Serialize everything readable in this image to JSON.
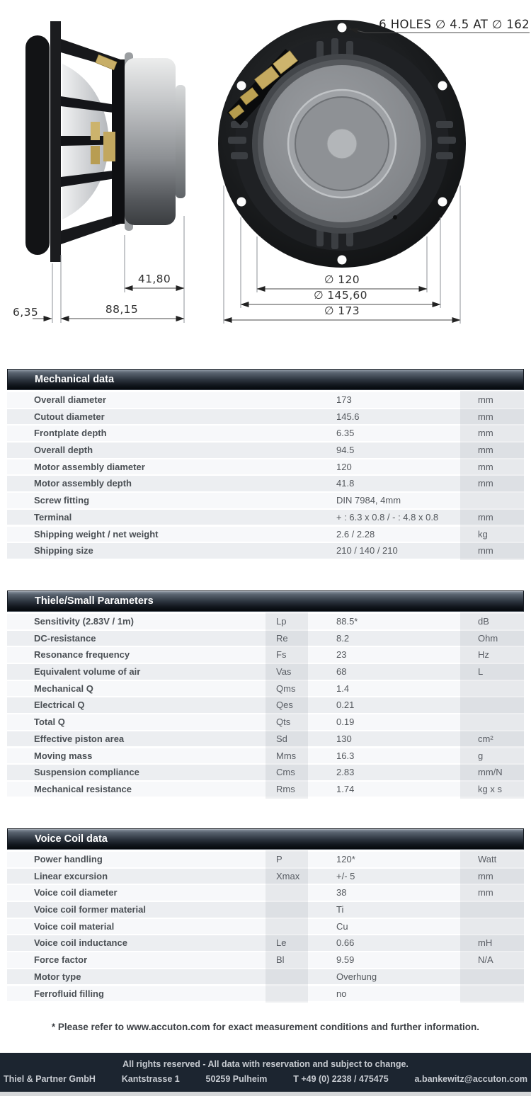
{
  "drawing": {
    "hole_note": "6 HOLES ∅ 4.5 AT ∅ 162",
    "dim_motor_depth": "41,80",
    "dim_depth_without_frontplate": "88,15",
    "dim_frontplate_depth": "6,35",
    "dim_motor_diameter": "∅ 120",
    "dim_cutout_diameter": "∅ 145,60",
    "dim_overall_diameter": "∅ 173"
  },
  "tables": [
    {
      "title": "Mechanical data",
      "rows": [
        {
          "label": "Overall diameter",
          "symbol": "",
          "value": "173",
          "unit": "mm"
        },
        {
          "label": "Cutout diameter",
          "symbol": "",
          "value": "145.6",
          "unit": "mm"
        },
        {
          "label": "Frontplate depth",
          "symbol": "",
          "value": "6.35",
          "unit": "mm"
        },
        {
          "label": "Overall depth",
          "symbol": "",
          "value": "94.5",
          "unit": "mm"
        },
        {
          "label": "Motor assembly diameter",
          "symbol": "",
          "value": "120",
          "unit": "mm"
        },
        {
          "label": "Motor assembly depth",
          "symbol": "",
          "value": "41.8",
          "unit": "mm"
        },
        {
          "label": "Screw fitting",
          "symbol": "",
          "value": "DIN 7984, 4mm",
          "unit": ""
        },
        {
          "label": "Terminal",
          "symbol": "",
          "value": "+ : 6.3 x 0.8 / - : 4.8 x 0.8",
          "unit": "mm"
        },
        {
          "label": "Shipping weight / net weight",
          "symbol": "",
          "value": "2.6 / 2.28",
          "unit": "kg"
        },
        {
          "label": "Shipping size",
          "symbol": "",
          "value": "210 / 140 / 210",
          "unit": "mm"
        }
      ]
    },
    {
      "title": "Thiele/Small Parameters",
      "rows": [
        {
          "label": "Sensitivity (2.83V / 1m)",
          "symbol": "Lp",
          "value": "88.5*",
          "unit": "dB"
        },
        {
          "label": "DC-resistance",
          "symbol": "Re",
          "value": "8.2",
          "unit": "Ohm"
        },
        {
          "label": "Resonance frequency",
          "symbol": "Fs",
          "value": "23",
          "unit": "Hz"
        },
        {
          "label": "Equivalent volume of air",
          "symbol": "Vas",
          "value": "68",
          "unit": "L"
        },
        {
          "label": "Mechanical Q",
          "symbol": "Qms",
          "value": "1.4",
          "unit": ""
        },
        {
          "label": "Electrical Q",
          "symbol": "Qes",
          "value": "0.21",
          "unit": ""
        },
        {
          "label": "Total Q",
          "symbol": "Qts",
          "value": "0.19",
          "unit": ""
        },
        {
          "label": "Effective piston area",
          "symbol": "Sd",
          "value": "130",
          "unit": "cm²"
        },
        {
          "label": "Moving mass",
          "symbol": "Mms",
          "value": "16.3",
          "unit": "g"
        },
        {
          "label": "Suspension compliance",
          "symbol": "Cms",
          "value": "2.83",
          "unit": "mm/N"
        },
        {
          "label": "Mechanical resistance",
          "symbol": "Rms",
          "value": "1.74",
          "unit": "kg x s"
        }
      ]
    },
    {
      "title": "Voice Coil data",
      "rows": [
        {
          "label": "Power handling",
          "symbol": "P",
          "value": "120*",
          "unit": "Watt"
        },
        {
          "label": "Linear excursion",
          "symbol": "Xmax",
          "value": "+/- 5",
          "unit": "mm"
        },
        {
          "label": "Voice coil diameter",
          "symbol": "",
          "value": "38",
          "unit": "mm"
        },
        {
          "label": "Voice coil former material",
          "symbol": "",
          "value": "Ti",
          "unit": ""
        },
        {
          "label": "Voice coil material",
          "symbol": "",
          "value": "Cu",
          "unit": ""
        },
        {
          "label": "Voice coil inductance",
          "symbol": "Le",
          "value": "0.66",
          "unit": "mH"
        },
        {
          "label": "Force factor",
          "symbol": "Bl",
          "value": "9.59",
          "unit": "N/A"
        },
        {
          "label": "Motor type",
          "symbol": "",
          "value": "Overhung",
          "unit": ""
        },
        {
          "label": "Ferrofluid filling",
          "symbol": "",
          "value": "no",
          "unit": ""
        }
      ]
    }
  ],
  "footnote": "* Please refer to www.accuton.com for exact measurement conditions and further information.",
  "footer": {
    "line1": "All rights reserved - All data with reservation and subject to change.",
    "items": [
      "Thiel & Partner GmbH",
      "Kantstrasse 1",
      "50259 Pulheim",
      "T +49 (0) 2238 / 475475",
      "a.bankewitz@accuton.com"
    ]
  },
  "colors": {
    "header_gradient_top": "#8d97a3",
    "header_gradient_bottom": "#05080c",
    "row_light": "#f7f8fa",
    "row_dark": "#eceef1",
    "footer_bg": "#1c2530",
    "gold_terminal": "#c9b06a"
  }
}
